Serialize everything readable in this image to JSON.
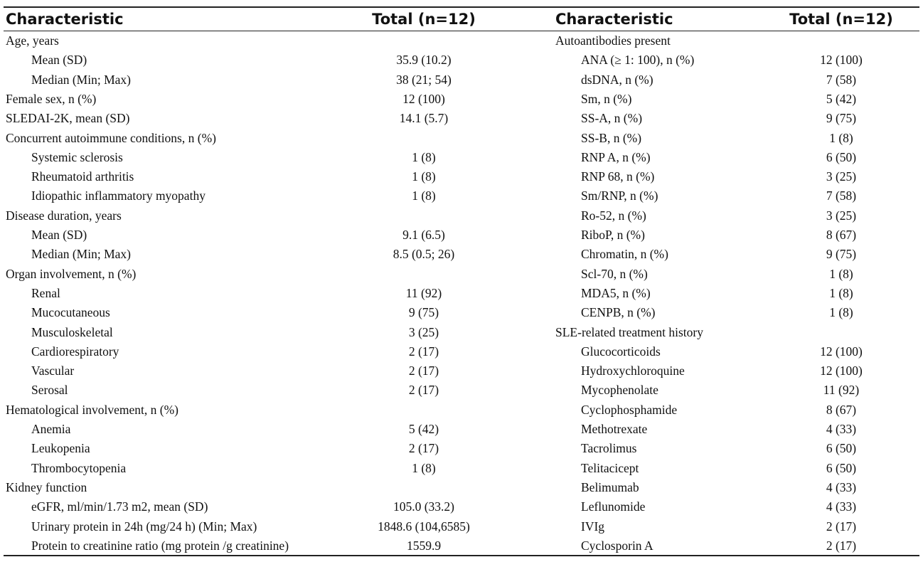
{
  "tables": [
    {
      "header": [
        "Characteristic",
        "Total (n=12)"
      ],
      "rows": [
        {
          "label": "Age, years",
          "items": [
            {
              "label": "Mean (SD)",
              "value": "35.9 (10.2)"
            },
            {
              "label": "Median (Min; Max)",
              "value": "38 (21; 54)"
            }
          ]
        },
        {
          "label": "Female sex, n (%)",
          "value": "12 (100)"
        },
        {
          "label": "SLEDAI-2K, mean (SD)",
          "value": "14.1 (5.7)"
        },
        {
          "label": "Concurrent autoimmune conditions, n (%)",
          "items": [
            {
              "label": "Systemic sclerosis",
              "value": "1 (8)"
            },
            {
              "label": "Rheumatoid arthritis",
              "value": "1 (8)"
            },
            {
              "label": "Idiopathic inflammatory myopathy",
              "value": "1 (8)"
            }
          ]
        },
        {
          "label": "Disease duration, years",
          "items": [
            {
              "label": "Mean (SD)",
              "value": "9.1 (6.5)"
            },
            {
              "label": "Median (Min; Max)",
              "value": "8.5 (0.5; 26)"
            }
          ]
        },
        {
          "label": "Organ involvement, n (%)",
          "items": [
            {
              "label": "Renal",
              "value": "11 (92)"
            },
            {
              "label": "Mucocutaneous",
              "value": "9 (75)"
            },
            {
              "label": "Musculoskeletal",
              "value": "3 (25)"
            },
            {
              "label": "Cardiorespiratory",
              "value": "2 (17)"
            },
            {
              "label": "Vascular",
              "value": "2 (17)"
            },
            {
              "label": "Serosal",
              "value": "2 (17)"
            }
          ]
        },
        {
          "label": "Hematological involvement, n (%)",
          "items": [
            {
              "label": "Anemia",
              "value": "5 (42)"
            },
            {
              "label": "Leukopenia",
              "value": "2 (17)"
            },
            {
              "label": "Thrombocytopenia",
              "value": "1 (8)"
            }
          ]
        },
        {
          "label": "Kidney function",
          "items": [
            {
              "label": "eGFR, ml/min/1.73 m2, mean (SD)",
              "value": "105.0 (33.2)"
            },
            {
              "label": "Urinary protein in 24h (mg/24 h) (Min; Max)",
              "value": "1848.6 (104,6585)"
            },
            {
              "label": "Protein to creatinine ratio (mg protein /g creatinine)",
              "value": "1559.9"
            }
          ]
        }
      ]
    },
    {
      "header": [
        "Characteristic",
        "Total (n=12)"
      ],
      "rows": [
        {
          "label": "Autoantibodies present",
          "items": [
            {
              "label": "ANA (≥ 1: 100), n (%)",
              "value": "12 (100)"
            },
            {
              "label": "dsDNA, n (%)",
              "value": "7 (58)"
            },
            {
              "label": "Sm, n (%)",
              "value": "5 (42)"
            },
            {
              "label": "SS-A, n (%)",
              "value": "9 (75)"
            },
            {
              "label": "SS-B, n (%)",
              "value": "1 (8)"
            },
            {
              "label": "RNP A, n (%)",
              "value": "6 (50)"
            },
            {
              "label": "RNP 68, n (%)",
              "value": "3 (25)"
            },
            {
              "label": "Sm/RNP, n (%)",
              "value": "7 (58)"
            },
            {
              "label": "Ro-52, n (%)",
              "value": "3 (25)"
            },
            {
              "label": "RiboP, n (%)",
              "value": "8 (67)"
            },
            {
              "label": "Chromatin, n (%)",
              "value": "9 (75)"
            },
            {
              "label": "Scl-70, n (%)",
              "value": "1 (8)"
            },
            {
              "label": "MDA5, n (%)",
              "value": "1 (8)"
            },
            {
              "label": "CENPB, n (%)",
              "value": "1 (8)"
            }
          ]
        },
        {
          "label": "SLE-related treatment history",
          "items": [
            {
              "label": "Glucocorticoids",
              "value": "12 (100)"
            },
            {
              "label": "Hydroxychloroquine",
              "value": "12 (100)"
            },
            {
              "label": "Mycophenolate",
              "value": "11 (92)"
            },
            {
              "label": "Cyclophosphamide",
              "value": "8 (67)"
            },
            {
              "label": "Methotrexate",
              "value": "4 (33)"
            },
            {
              "label": "Tacrolimus",
              "value": "6 (50)"
            },
            {
              "label": "Telitacicept",
              "value": "6 (50)"
            },
            {
              "label": "Belimumab",
              "value": "4 (33)"
            },
            {
              "label": "Leflunomide",
              "value": "4 (33)"
            },
            {
              "label": "IVIg",
              "value": "2 (17)"
            },
            {
              "label": "Cyclosporin A",
              "value": "2 (17)"
            }
          ]
        }
      ]
    }
  ]
}
